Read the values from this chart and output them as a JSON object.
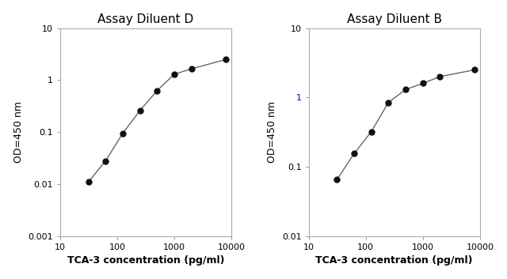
{
  "left_title": "Assay Diluent D",
  "right_title": "Assay Diluent B",
  "xlabel": "TCA-3 concentration (pg/ml)",
  "ylabel": "OD=450 nm",
  "left_x": [
    31.25,
    62.5,
    125,
    250,
    500,
    1000,
    2000,
    8000
  ],
  "left_y": [
    0.011,
    0.028,
    0.095,
    0.26,
    0.63,
    1.3,
    1.65,
    2.5
  ],
  "right_x": [
    31.25,
    62.5,
    125,
    250,
    500,
    1000,
    2000,
    8000
  ],
  "right_y": [
    0.065,
    0.155,
    0.32,
    0.85,
    1.3,
    1.6,
    2.0,
    2.5
  ],
  "left_xlim": [
    10,
    10000
  ],
  "left_ylim": [
    0.001,
    10
  ],
  "right_xlim": [
    10,
    10000
  ],
  "right_ylim": [
    0.01,
    10
  ],
  "line_color": "#666666",
  "marker_color": "#111111",
  "marker_size": 5,
  "title_fontsize": 11,
  "label_fontsize": 9,
  "tick_fontsize": 8,
  "ylabel_color": "#000000",
  "right_special_tick_color": "#0000cc",
  "xlabel_fontweight": "bold",
  "ylabel_fontweight": "normal"
}
